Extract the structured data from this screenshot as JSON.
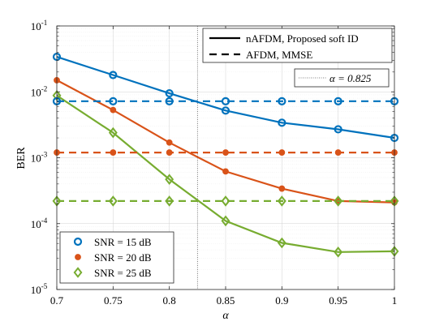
{
  "chart_data": {
    "type": "line",
    "xlabel": "α",
    "ylabel": "BER",
    "xlim": [
      0.7,
      1.0
    ],
    "ylim": [
      1e-05,
      0.1
    ],
    "yscale": "log",
    "grid": true,
    "x": [
      0.7,
      0.75,
      0.8,
      0.85,
      0.9,
      0.95,
      1.0
    ],
    "x_tick_labels": [
      "0.7",
      "0.75",
      "0.8",
      "0.85",
      "0.9",
      "0.95",
      "1"
    ],
    "y_ticks": [
      {
        "value": 1e-05,
        "base": "10",
        "exp": "-5"
      },
      {
        "value": 0.0001,
        "base": "10",
        "exp": "-4"
      },
      {
        "value": 0.001,
        "base": "10",
        "exp": "-3"
      },
      {
        "value": 0.01,
        "base": "10",
        "exp": "-2"
      },
      {
        "value": 0.1,
        "base": "10",
        "exp": "-1"
      }
    ],
    "series": [
      {
        "snr": "SNR = 15 dB",
        "method": "nAFDM, Proposed soft ID",
        "color": "#0072bd",
        "marker": "circle",
        "values": [
          0.034,
          0.018,
          0.0095,
          0.0052,
          0.0034,
          0.0027,
          0.002
        ]
      },
      {
        "snr": "SNR = 20 dB",
        "method": "nAFDM, Proposed soft ID",
        "color": "#d95319",
        "marker": "dot",
        "values": [
          0.015,
          0.0053,
          0.0017,
          0.00062,
          0.00034,
          0.00022,
          0.00021
        ]
      },
      {
        "snr": "SNR = 25 dB",
        "method": "nAFDM, Proposed soft ID",
        "color": "#77ac30",
        "marker": "diamond",
        "values": [
          0.0088,
          0.0024,
          0.00047,
          0.00011,
          5.1e-05,
          3.7e-05,
          3.8e-05
        ]
      },
      {
        "snr": "SNR = 15 dB",
        "method": "AFDM, MMSE",
        "color": "#0072bd",
        "marker": "circle",
        "values": [
          0.0072,
          0.0072,
          0.0072,
          0.0072,
          0.0072,
          0.0072,
          0.0072
        ]
      },
      {
        "snr": "SNR = 20 dB",
        "method": "AFDM, MMSE",
        "color": "#d95319",
        "marker": "dot",
        "values": [
          0.0012,
          0.0012,
          0.0012,
          0.0012,
          0.0012,
          0.0012,
          0.0012
        ]
      },
      {
        "snr": "SNR = 25 dB",
        "method": "AFDM, MMSE",
        "color": "#77ac30",
        "marker": "diamond",
        "values": [
          0.00022,
          0.00022,
          0.00022,
          0.00022,
          0.00022,
          0.00022,
          0.00022
        ]
      }
    ],
    "vline": {
      "x": 0.825,
      "label": "α = 0.825"
    },
    "legend_methods": [
      "nAFDM, Proposed soft ID",
      "AFDM, MMSE"
    ],
    "legend_snr": [
      "SNR = 15 dB",
      "SNR = 20 dB",
      "SNR = 25 dB"
    ],
    "legend_vline_label": "α = 0.825",
    "legend_placement": [
      "top-right",
      "bottom-left"
    ]
  }
}
